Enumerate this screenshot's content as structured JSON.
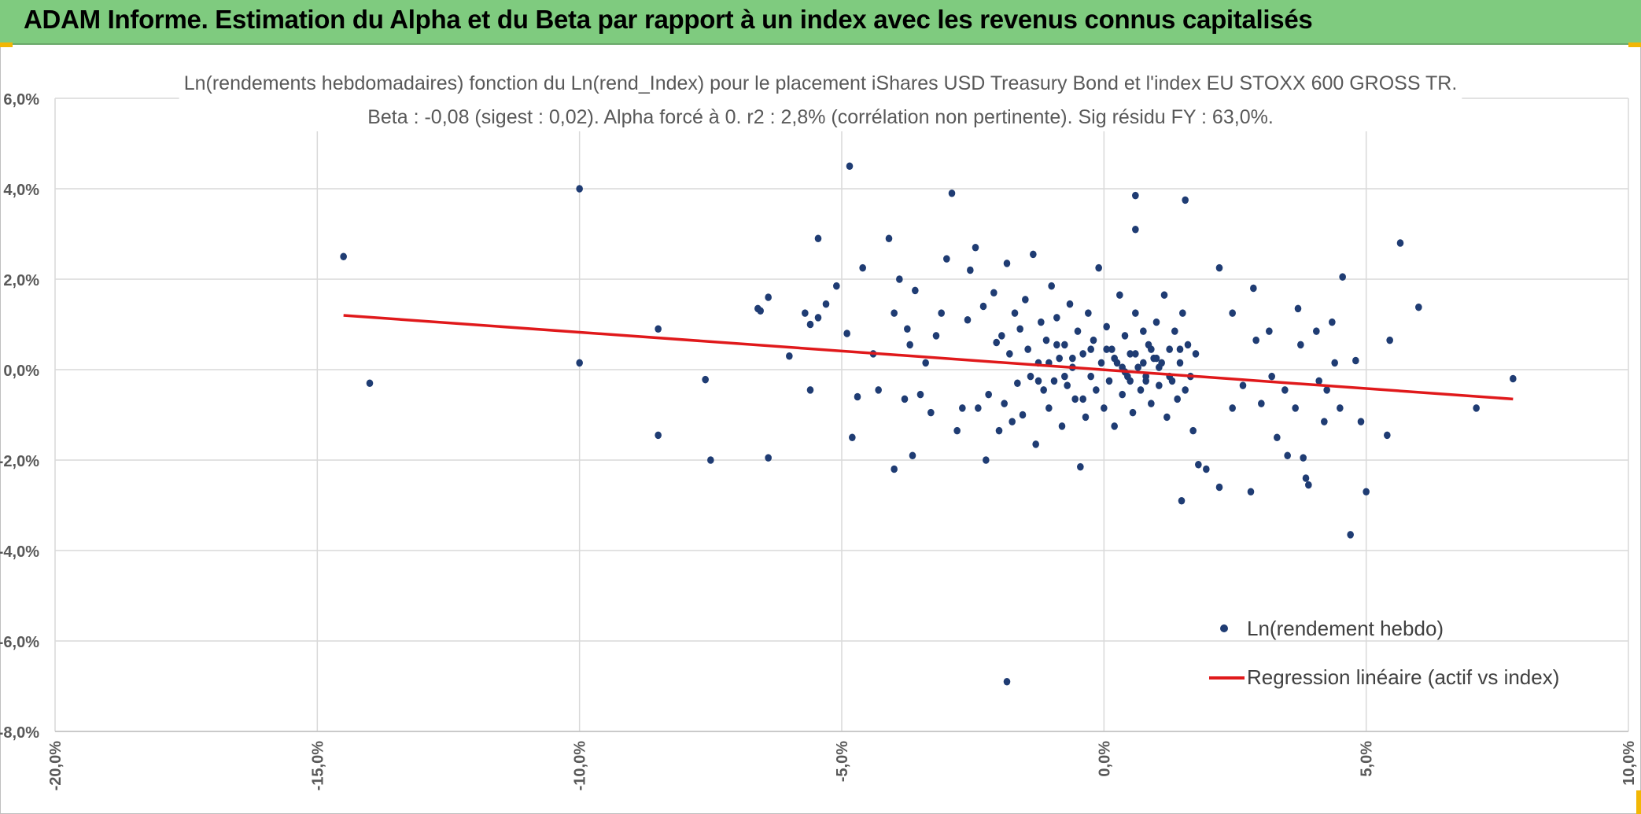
{
  "banner": {
    "title": "ADAM Informe. Estimation du Alpha et du Beta par rapport à un index avec les revenus connus capitalisés"
  },
  "colors": {
    "banner_bg": "#7fcb7f",
    "points": "#1f3c73",
    "regression": "#e0191b",
    "grid": "#d9d9d9",
    "corner_marks": "#f2b705"
  },
  "chart_data": {
    "type": "scatter",
    "title_line1": "Ln(rendements hebdomadaires) fonction du Ln(rend_Index) pour le placement iShares USD Treasury Bond et l'index EU STOXX 600 GROSS TR.",
    "title_line2": "Beta : -0,08 (sigest : 0,02). Alpha forcé à 0. r2 : 2,8% (corrélation non pertinente). Sig résidu FY : 63,0%.",
    "xlim": [
      -0.2,
      0.1
    ],
    "ylim": [
      -0.08,
      0.06
    ],
    "xticks": [
      {
        "value": -0.2,
        "label": "-20,0%"
      },
      {
        "value": -0.15,
        "label": "-15,0%"
      },
      {
        "value": -0.1,
        "label": "-10,0%"
      },
      {
        "value": -0.05,
        "label": "-5,0%"
      },
      {
        "value": 0.0,
        "label": "0,0%"
      },
      {
        "value": 0.05,
        "label": "5,0%"
      },
      {
        "value": 0.1,
        "label": "10,0%"
      }
    ],
    "yticks": [
      {
        "value": 0.06,
        "label": "6,0%"
      },
      {
        "value": 0.04,
        "label": "4,0%"
      },
      {
        "value": 0.02,
        "label": "2,0%"
      },
      {
        "value": 0.0,
        "label": "0,0%"
      },
      {
        "value": -0.02,
        "label": "-2,0%"
      },
      {
        "value": -0.04,
        "label": "-4,0%"
      },
      {
        "value": -0.06,
        "label": "-6,0%"
      },
      {
        "value": -0.08,
        "label": "-8,0%"
      }
    ],
    "grid": true,
    "legend_position": "bottom-right",
    "series": [
      {
        "name": "Ln(rendement hebdo)",
        "kind": "scatter",
        "points": [
          [
            -0.145,
            0.025
          ],
          [
            -0.14,
            -0.003
          ],
          [
            -0.1,
            0.04
          ],
          [
            -0.1,
            0.0015
          ],
          [
            -0.085,
            0.009
          ],
          [
            -0.085,
            -0.0145
          ],
          [
            -0.076,
            -0.0022
          ],
          [
            -0.075,
            -0.02
          ],
          [
            -0.066,
            0.0135
          ],
          [
            -0.0655,
            0.013
          ],
          [
            -0.064,
            0.016
          ],
          [
            -0.064,
            -0.0195
          ],
          [
            -0.06,
            0.003
          ],
          [
            -0.056,
            -0.0045
          ],
          [
            -0.057,
            0.0125
          ],
          [
            -0.056,
            0.01
          ],
          [
            -0.0545,
            0.029
          ],
          [
            -0.0545,
            0.0115
          ],
          [
            -0.053,
            0.0145
          ],
          [
            -0.051,
            0.0185
          ],
          [
            -0.049,
            0.008
          ],
          [
            -0.048,
            -0.015
          ],
          [
            -0.0485,
            0.045
          ],
          [
            -0.047,
            -0.006
          ],
          [
            -0.046,
            0.0225
          ],
          [
            -0.044,
            0.0035
          ],
          [
            -0.043,
            -0.0045
          ],
          [
            -0.041,
            0.029
          ],
          [
            -0.04,
            0.0125
          ],
          [
            -0.04,
            -0.022
          ],
          [
            -0.039,
            0.02
          ],
          [
            -0.038,
            -0.0065
          ],
          [
            -0.0375,
            0.009
          ],
          [
            -0.037,
            0.0055
          ],
          [
            -0.0365,
            -0.019
          ],
          [
            -0.036,
            0.0175
          ],
          [
            -0.035,
            -0.0055
          ],
          [
            -0.034,
            0.0015
          ],
          [
            -0.033,
            -0.0095
          ],
          [
            -0.032,
            0.0075
          ],
          [
            -0.031,
            0.0125
          ],
          [
            -0.03,
            0.0245
          ],
          [
            -0.029,
            0.039
          ],
          [
            -0.028,
            -0.0135
          ],
          [
            -0.027,
            -0.0085
          ],
          [
            -0.026,
            0.011
          ],
          [
            -0.0255,
            0.022
          ],
          [
            -0.0245,
            0.027
          ],
          [
            -0.024,
            -0.0085
          ],
          [
            -0.023,
            0.014
          ],
          [
            -0.0225,
            -0.02
          ],
          [
            -0.022,
            -0.0055
          ],
          [
            -0.021,
            0.017
          ],
          [
            -0.0205,
            0.006
          ],
          [
            -0.02,
            -0.0135
          ],
          [
            -0.0195,
            0.0075
          ],
          [
            -0.019,
            -0.0075
          ],
          [
            -0.0185,
            0.0235
          ],
          [
            -0.018,
            0.0035
          ],
          [
            -0.0175,
            -0.0115
          ],
          [
            -0.017,
            0.0125
          ],
          [
            -0.0165,
            -0.003
          ],
          [
            -0.016,
            0.009
          ],
          [
            -0.0155,
            -0.01
          ],
          [
            -0.015,
            0.0155
          ],
          [
            -0.0145,
            0.0045
          ],
          [
            -0.014,
            -0.0015
          ],
          [
            -0.0135,
            0.0255
          ],
          [
            -0.013,
            -0.0165
          ],
          [
            -0.0125,
            0.0015
          ],
          [
            -0.012,
            0.0105
          ],
          [
            -0.0115,
            -0.0045
          ],
          [
            -0.011,
            0.0065
          ],
          [
            -0.0105,
            -0.0085
          ],
          [
            -0.01,
            0.0185
          ],
          [
            -0.0095,
            -0.0025
          ],
          [
            -0.009,
            0.0115
          ],
          [
            -0.0085,
            0.0025
          ],
          [
            -0.008,
            -0.0125
          ],
          [
            -0.0075,
            0.0055
          ],
          [
            -0.007,
            -0.0035
          ],
          [
            -0.0065,
            0.0145
          ],
          [
            -0.006,
            0.0005
          ],
          [
            -0.0055,
            -0.0065
          ],
          [
            -0.005,
            0.0085
          ],
          [
            -0.0045,
            -0.0215
          ],
          [
            -0.004,
            0.0035
          ],
          [
            -0.0035,
            -0.0105
          ],
          [
            -0.003,
            0.0125
          ],
          [
            -0.0025,
            -0.0015
          ],
          [
            -0.002,
            0.0065
          ],
          [
            -0.0015,
            -0.0045
          ],
          [
            -0.001,
            0.0225
          ],
          [
            -0.0005,
            0.0015
          ],
          [
            0.0,
            -0.0085
          ],
          [
            0.0005,
            0.0095
          ],
          [
            0.001,
            -0.0025
          ],
          [
            0.0015,
            0.0045
          ],
          [
            0.002,
            -0.0125
          ],
          [
            0.0025,
            0.0015
          ],
          [
            0.003,
            0.0165
          ],
          [
            0.0035,
            -0.0055
          ],
          [
            0.004,
            0.0075
          ],
          [
            0.0045,
            -0.0015
          ],
          [
            0.005,
            0.0035
          ],
          [
            0.0055,
            -0.0095
          ],
          [
            0.006,
            0.0125
          ],
          [
            0.0065,
            0.0005
          ],
          [
            0.007,
            -0.0045
          ],
          [
            0.0075,
            0.0085
          ],
          [
            0.008,
            -0.0015
          ],
          [
            0.0085,
            0.0055
          ],
          [
            0.009,
            -0.0075
          ],
          [
            0.0095,
            0.0025
          ],
          [
            0.01,
            0.0105
          ],
          [
            0.0105,
            -0.0035
          ],
          [
            0.011,
            0.0015
          ],
          [
            0.0115,
            0.0165
          ],
          [
            0.012,
            -0.0105
          ],
          [
            0.0125,
            0.0045
          ],
          [
            0.013,
            -0.0025
          ],
          [
            0.0135,
            0.0085
          ],
          [
            0.014,
            -0.0065
          ],
          [
            0.0145,
            0.0015
          ],
          [
            0.015,
            0.0125
          ],
          [
            0.0155,
            -0.0045
          ],
          [
            0.016,
            0.0055
          ],
          [
            0.0165,
            -0.0015
          ],
          [
            0.017,
            -0.0135
          ],
          [
            0.0175,
            0.0035
          ],
          [
            -0.0185,
            -0.069
          ],
          [
            0.006,
            0.0385
          ],
          [
            0.0155,
            0.0375
          ],
          [
            0.006,
            0.031
          ],
          [
            0.0148,
            -0.029
          ],
          [
            0.018,
            -0.021
          ],
          [
            0.0195,
            -0.022
          ],
          [
            0.022,
            0.0225
          ],
          [
            0.022,
            -0.026
          ],
          [
            0.0245,
            0.0125
          ],
          [
            0.0245,
            -0.0085
          ],
          [
            0.0265,
            -0.0035
          ],
          [
            0.028,
            -0.027
          ],
          [
            0.0285,
            0.018
          ],
          [
            0.029,
            0.0065
          ],
          [
            0.03,
            -0.0075
          ],
          [
            0.0315,
            0.0085
          ],
          [
            0.032,
            -0.0015
          ],
          [
            0.033,
            -0.015
          ],
          [
            0.0345,
            -0.0045
          ],
          [
            0.035,
            -0.019
          ],
          [
            0.0365,
            -0.0085
          ],
          [
            0.037,
            0.0135
          ],
          [
            0.0375,
            0.0055
          ],
          [
            0.038,
            -0.0195
          ],
          [
            0.0385,
            -0.024
          ],
          [
            0.039,
            -0.0255
          ],
          [
            0.0405,
            0.0085
          ],
          [
            0.041,
            -0.0025
          ],
          [
            0.042,
            -0.0115
          ],
          [
            0.0425,
            -0.0045
          ],
          [
            0.0435,
            0.0105
          ],
          [
            0.044,
            0.0015
          ],
          [
            0.045,
            -0.0085
          ],
          [
            0.0455,
            0.0205
          ],
          [
            0.047,
            -0.0365
          ],
          [
            0.048,
            0.002
          ],
          [
            0.049,
            -0.0115
          ],
          [
            0.05,
            -0.027
          ],
          [
            0.054,
            -0.0145
          ],
          [
            0.0545,
            0.0065
          ],
          [
            0.0565,
            0.028
          ],
          [
            0.06,
            0.0138
          ],
          [
            0.071,
            -0.0085
          ],
          [
            0.078,
            -0.002
          ],
          [
            -0.0025,
            0.0045
          ],
          [
            -0.004,
            -0.0065
          ],
          [
            0.0005,
            0.0045
          ],
          [
            0.0035,
            0.0005
          ],
          [
            0.005,
            -0.0025
          ],
          [
            0.0075,
            0.0015
          ],
          [
            0.009,
            0.0045
          ],
          [
            0.0105,
            0.0005
          ],
          [
            0.0125,
            -0.0015
          ],
          [
            0.0145,
            0.0045
          ],
          [
            -0.006,
            0.0025
          ],
          [
            -0.0075,
            -0.0015
          ],
          [
            -0.009,
            0.0055
          ],
          [
            -0.0105,
            0.0015
          ],
          [
            -0.0125,
            -0.0025
          ],
          [
            0.002,
            0.0025
          ],
          [
            0.004,
            -0.0005
          ],
          [
            0.006,
            0.0035
          ],
          [
            0.008,
            -0.0025
          ],
          [
            0.01,
            0.0025
          ]
        ]
      },
      {
        "name": "Regression linéaire (actif vs index)",
        "kind": "line",
        "points": [
          [
            -0.145,
            0.012
          ],
          [
            0.078,
            -0.0065
          ]
        ]
      }
    ]
  }
}
